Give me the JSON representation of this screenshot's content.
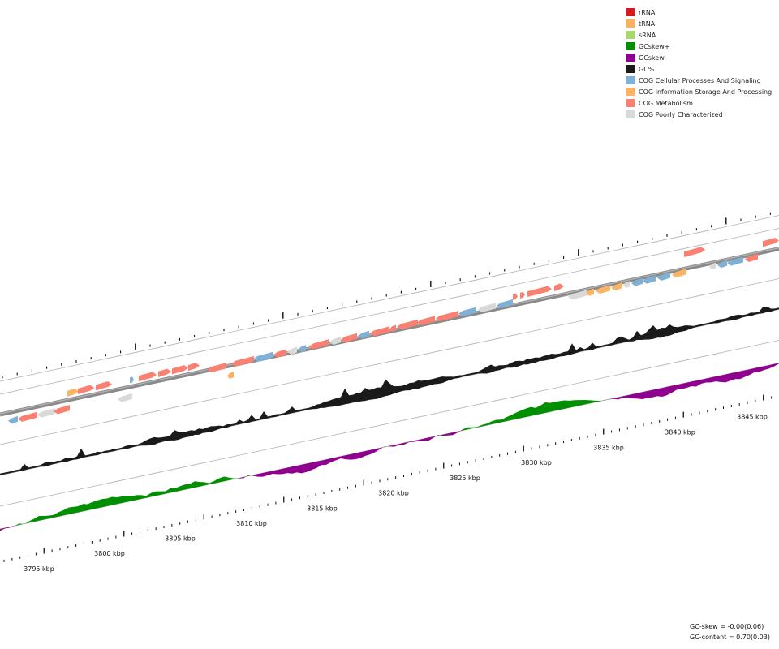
{
  "legend": [
    {
      "label": "rRNA",
      "color": "#d7191c"
    },
    {
      "label": "tRNA",
      "color": "#fdae61"
    },
    {
      "label": "sRNA",
      "color": "#a6d96a"
    },
    {
      "label": "GCskew+",
      "color": "#008f00"
    },
    {
      "label": "GCskew-",
      "color": "#8f008f"
    },
    {
      "label": "GC%",
      "color": "#1a1a1a"
    },
    {
      "label": "COG Cellular Processes And Signaling",
      "color": "#7fb0d5"
    },
    {
      "label": "COG Information Storage And Processing",
      "color": "#fdb462"
    },
    {
      "label": "COG Metabolism",
      "color": "#fa8072"
    },
    {
      "label": "COG Poorly Characterized",
      "color": "#d9d9d9"
    }
  ],
  "scale_labels": [
    "3795 kbp",
    "3800 kbp",
    "3805 kbp",
    "3810 kbp",
    "3815 kbp",
    "3820 kbp",
    "3825 kbp",
    "3830 kbp",
    "3835 kbp",
    "3840 kbp",
    "3845 kbp"
  ],
  "stats": {
    "gc_skew": "GC-skew = -0.00(0.06)",
    "gc_content": "GC-content = 0.70(0.03)"
  },
  "colors": {
    "cellular": "#7fb0d5",
    "information": "#fdb462",
    "metabolism": "#fa8072",
    "poorly": "#d9d9d9",
    "trna": "#fdae61",
    "gc": "#1a1a1a",
    "skew_pos": "#008f00",
    "skew_neg": "#8f008f",
    "backbone": "#8a8a8a",
    "ring": "#b0b0b0"
  }
}
